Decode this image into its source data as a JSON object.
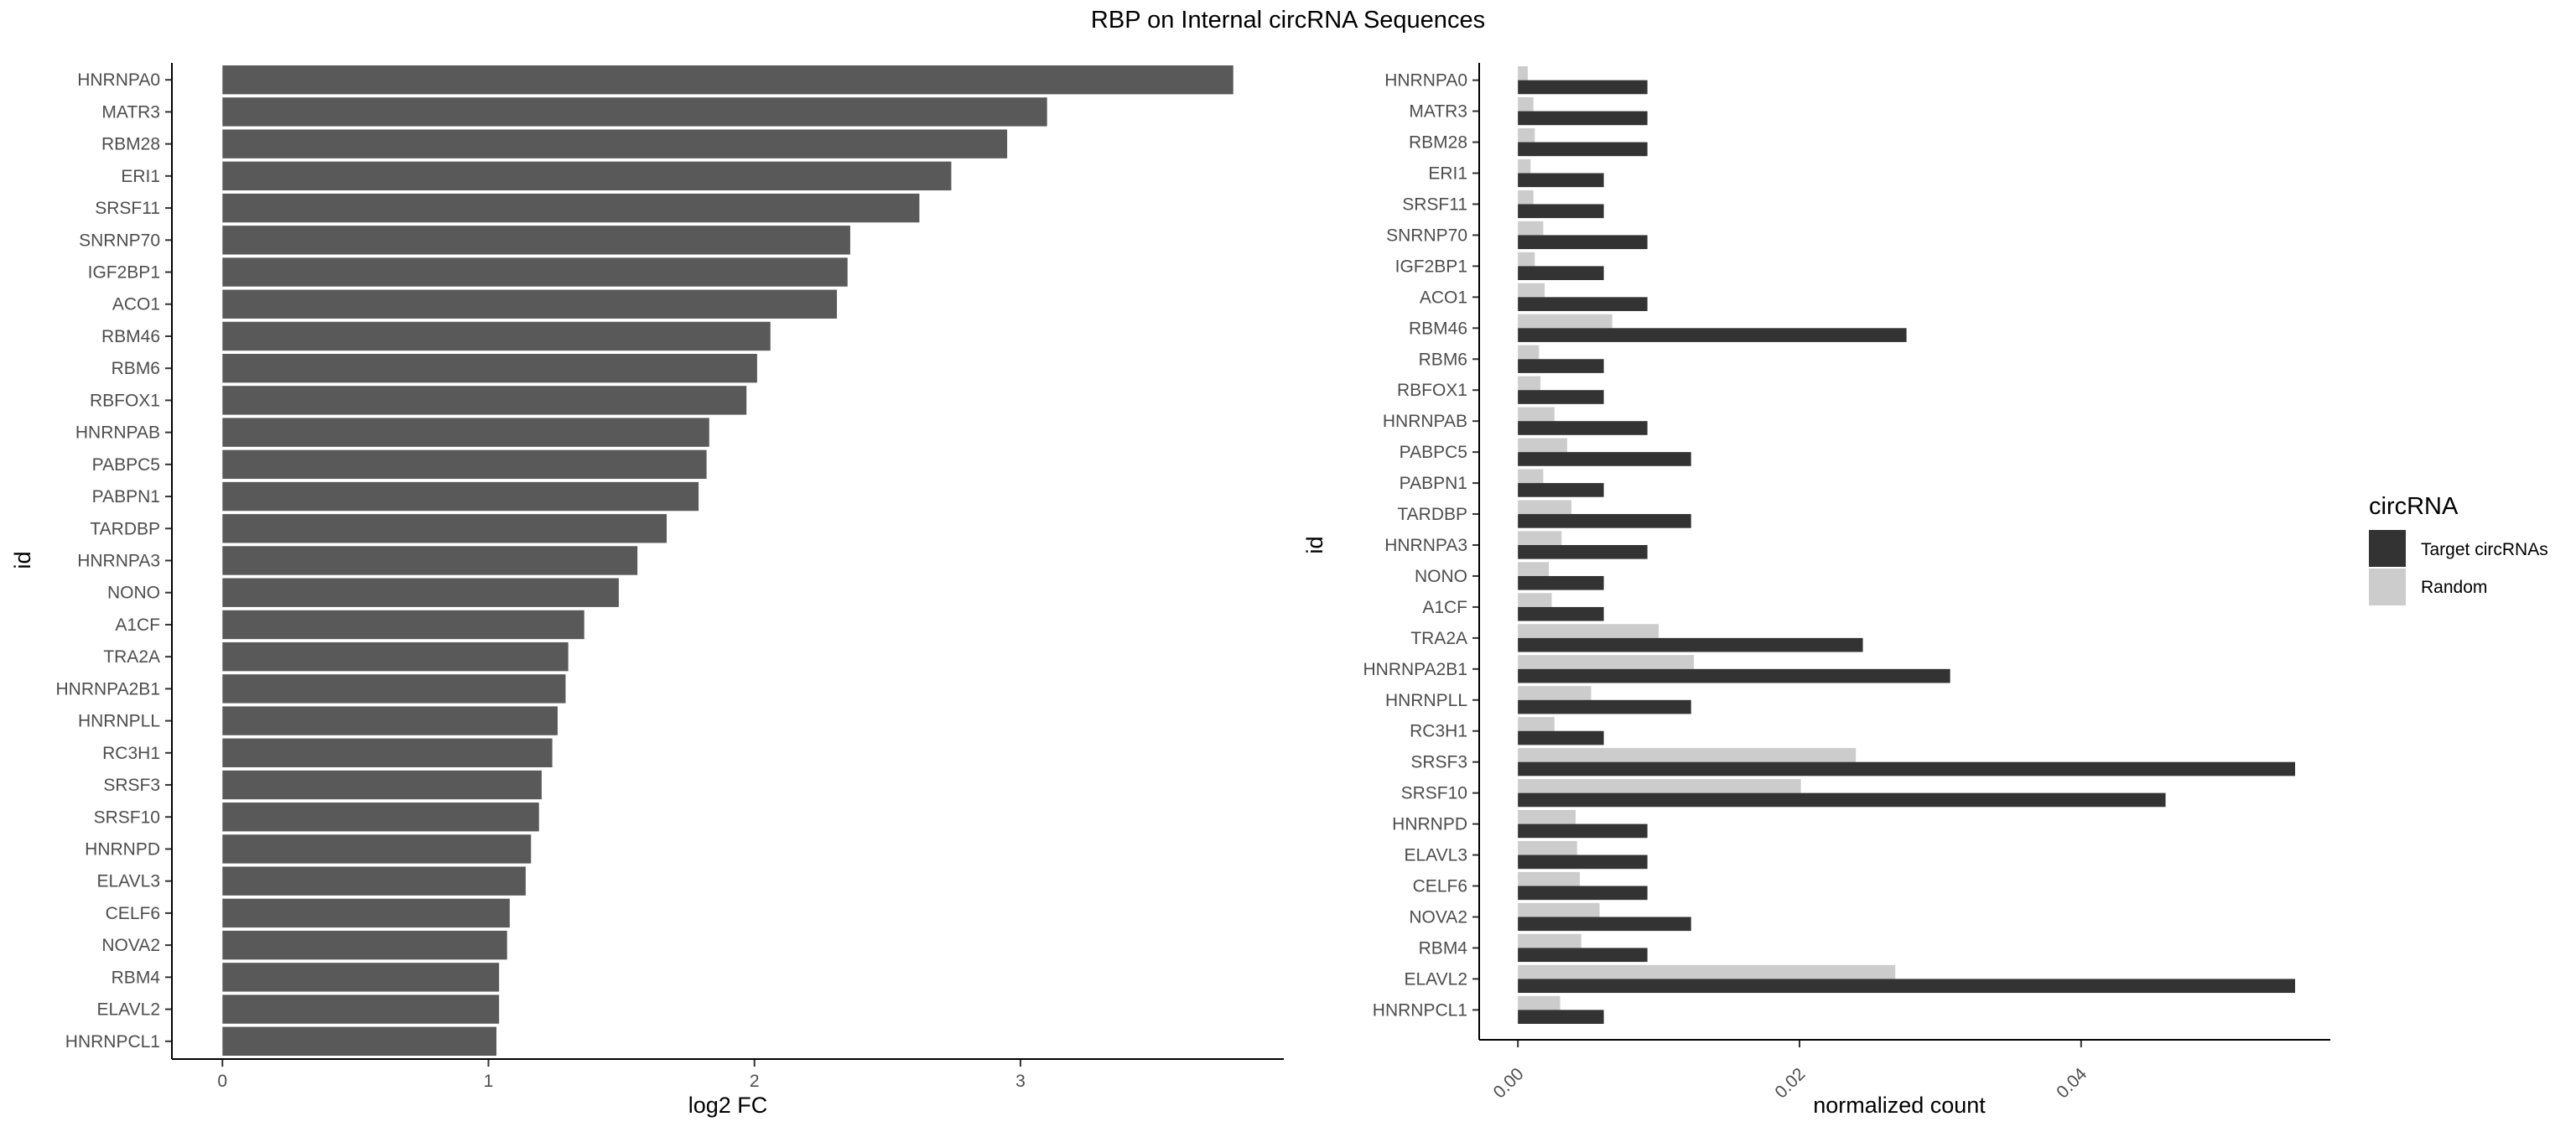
{
  "title": "RBP on Internal circRNA Sequences",
  "chart_data": [
    {
      "type": "bar",
      "orientation": "horizontal",
      "xlabel": "log2 FC",
      "ylabel": "id",
      "xlim": [
        -0.19,
        3.99
      ],
      "xticks": [
        0,
        1,
        2,
        3
      ],
      "xtick_labels": [
        "0",
        "1",
        "2",
        "3"
      ],
      "grid": false,
      "bar_color": "#595959",
      "categories": [
        "HNRNPA0",
        "MATR3",
        "RBM28",
        "ERI1",
        "SRSF11",
        "SNRNP70",
        "IGF2BP1",
        "ACO1",
        "RBM46",
        "RBM6",
        "RBFOX1",
        "HNRNPAB",
        "PABPC5",
        "PABPN1",
        "TARDBP",
        "HNRNPA3",
        "NONO",
        "A1CF",
        "TRA2A",
        "HNRNPA2B1",
        "HNRNPLL",
        "RC3H1",
        "SRSF3",
        "SRSF10",
        "HNRNPD",
        "ELAVL3",
        "CELF6",
        "NOVA2",
        "RBM4",
        "ELAVL2",
        "HNRNPCL1"
      ],
      "values": [
        3.8,
        3.1,
        2.95,
        2.74,
        2.62,
        2.36,
        2.35,
        2.31,
        2.06,
        2.01,
        1.97,
        1.83,
        1.82,
        1.79,
        1.67,
        1.56,
        1.49,
        1.36,
        1.3,
        1.29,
        1.26,
        1.24,
        1.2,
        1.19,
        1.16,
        1.14,
        1.08,
        1.07,
        1.04,
        1.04,
        1.03
      ]
    },
    {
      "type": "bar",
      "orientation": "horizontal",
      "layout": "grouped",
      "xlabel": "normalized count",
      "ylabel": "id",
      "xlim": [
        -0.00275,
        0.0577
      ],
      "xticks": [
        0,
        0.02,
        0.04
      ],
      "xtick_labels": [
        "0.00",
        "0.02",
        "0.04"
      ],
      "grid": false,
      "legend_title": "circRNA",
      "legend_position": "right",
      "categories": [
        "HNRNPA0",
        "MATR3",
        "RBM28",
        "ERI1",
        "SRSF11",
        "SNRNP70",
        "IGF2BP1",
        "ACO1",
        "RBM46",
        "RBM6",
        "RBFOX1",
        "HNRNPAB",
        "PABPC5",
        "PABPN1",
        "TARDBP",
        "HNRNPA3",
        "NONO",
        "A1CF",
        "TRA2A",
        "HNRNPA2B1",
        "HNRNPLL",
        "RC3H1",
        "SRSF3",
        "SRSF10",
        "HNRNPD",
        "ELAVL3",
        "CELF6",
        "NOVA2",
        "RBM4",
        "ELAVL2",
        "HNRNPCL1"
      ],
      "series": [
        {
          "name": "Target circRNAs",
          "color": "#333333",
          "values": [
            0.0092,
            0.0092,
            0.0092,
            0.0061,
            0.0061,
            0.0092,
            0.0061,
            0.0092,
            0.0276,
            0.0061,
            0.0061,
            0.0092,
            0.0123,
            0.0061,
            0.0123,
            0.0092,
            0.0061,
            0.0061,
            0.0245,
            0.0307,
            0.0123,
            0.0061,
            0.0552,
            0.046,
            0.0092,
            0.0092,
            0.0092,
            0.0123,
            0.0092,
            0.0552,
            0.0061
          ]
        },
        {
          "name": "Random",
          "color": "#cccccc",
          "values": [
            0.0007,
            0.0011,
            0.0012,
            0.0009,
            0.0011,
            0.0018,
            0.0012,
            0.0019,
            0.0067,
            0.0015,
            0.0016,
            0.0026,
            0.0035,
            0.0018,
            0.0038,
            0.0031,
            0.0022,
            0.0024,
            0.01,
            0.0125,
            0.0052,
            0.0026,
            0.024,
            0.0201,
            0.0041,
            0.0042,
            0.0044,
            0.0058,
            0.0045,
            0.0268,
            0.003
          ]
        }
      ]
    }
  ]
}
